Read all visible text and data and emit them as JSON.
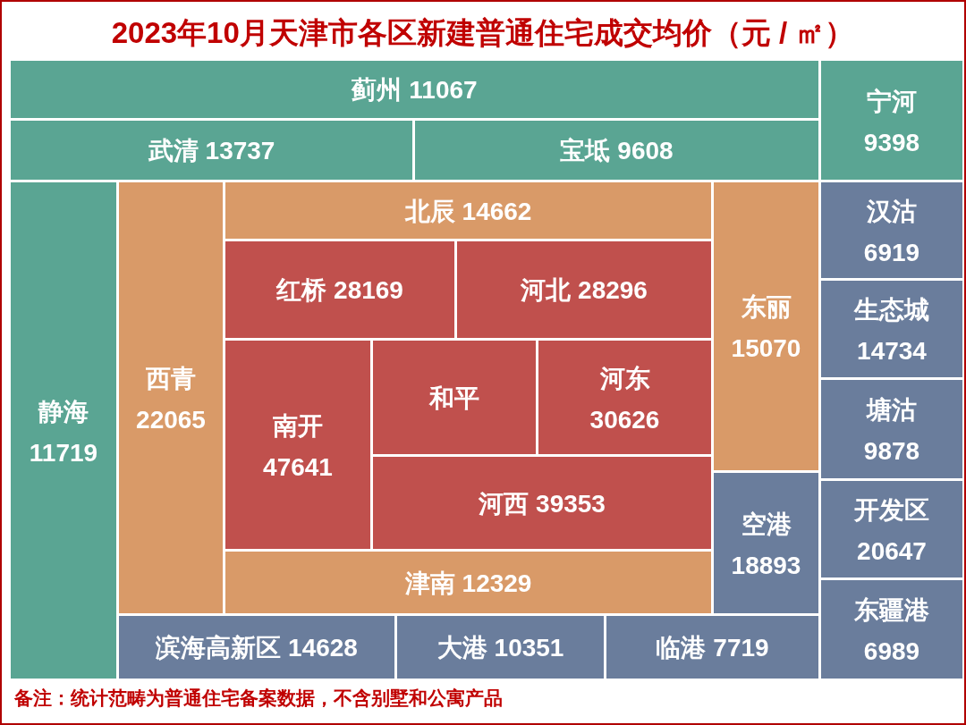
{
  "chart_data": {
    "type": "other",
    "title": "2023年10月天津市各区新建普通住宅成交均价（元 / ㎡）",
    "categories": [
      "蓟州",
      "宁河",
      "武清",
      "宝坻",
      "静海",
      "西青",
      "北辰",
      "东丽",
      "汉沽",
      "红桥",
      "河北",
      "生态城",
      "南开",
      "和平",
      "河东",
      "塘沽",
      "空港",
      "河西",
      "开发区",
      "津南",
      "东疆港",
      "滨海高新区",
      "大港",
      "临港"
    ],
    "values": [
      11067,
      9398,
      13737,
      9608,
      11719,
      22065,
      14662,
      15070,
      6919,
      28169,
      28296,
      14734,
      47641,
      null,
      30626,
      9878,
      18893,
      39353,
      20647,
      12329,
      6989,
      14628,
      10351,
      7719
    ],
    "colors": [
      "#5aa593",
      "#5aa593",
      "#5aa593",
      "#5aa593",
      "#5aa593",
      "#d99a68",
      "#d99a68",
      "#d99a68",
      "#6a7d9c",
      "#c0504d",
      "#c0504d",
      "#6a7d9c",
      "#c0504d",
      "#c0504d",
      "#c0504d",
      "#6a7d9c",
      "#6a7d9c",
      "#c0504d",
      "#6a7d9c",
      "#d99a68",
      "#6a7d9c",
      "#6a7d9c",
      "#6a7d9c",
      "#6a7d9c"
    ],
    "data_labels": true,
    "annotations": [
      "备注：统计范畴为普通住宅备案数据，不含别墅和公寓产品"
    ]
  }
}
